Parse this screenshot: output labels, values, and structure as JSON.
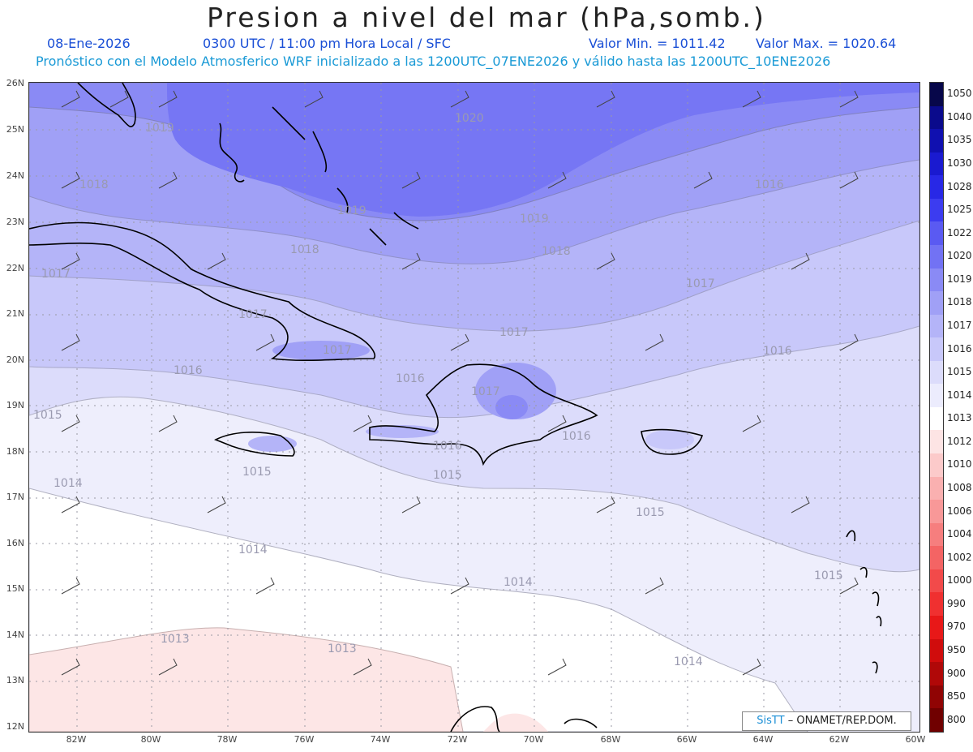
{
  "header": {
    "title": "Presion a nivel del mar (hPa,somb.)",
    "date": "08-Ene-2026",
    "time": "0300 UTC / 11:00 pm Hora Local / SFC",
    "min_label": "Valor Min. = 1011.42",
    "max_label": "Valor Max. = 1020.64",
    "model_line": "Pronóstico con el Modelo Atmosferico WRF inicializado a las 1200UTC_07ENE2026 y válido hasta las  1200UTC_10ENE2026"
  },
  "axes": {
    "lat_labels": [
      "26N",
      "25N",
      "24N",
      "23N",
      "22N",
      "21N",
      "20N",
      "19N",
      "18N",
      "17N",
      "16N",
      "15N",
      "14N",
      "13N",
      "12N"
    ],
    "lon_labels": [
      "82W",
      "80W",
      "78W",
      "76W",
      "74W",
      "72W",
      "70W",
      "68W",
      "66W",
      "64W",
      "62W",
      "60W"
    ]
  },
  "contour_labels": [
    {
      "text": "1019",
      "ref": "a"
    },
    {
      "text": "1020",
      "ref": "b"
    },
    {
      "text": "1018",
      "ref": "c"
    },
    {
      "text": "1019",
      "ref": "d"
    },
    {
      "text": "1016",
      "ref": "e"
    },
    {
      "text": "1019",
      "ref": "f"
    },
    {
      "text": "1018",
      "ref": "g"
    },
    {
      "text": "1018",
      "ref": "h"
    },
    {
      "text": "1017",
      "ref": "i"
    },
    {
      "text": "1017",
      "ref": "j"
    },
    {
      "text": "1017",
      "ref": "k"
    },
    {
      "text": "1017",
      "ref": "l"
    },
    {
      "text": "1017",
      "ref": "m"
    },
    {
      "text": "1016",
      "ref": "n"
    },
    {
      "text": "1016",
      "ref": "o"
    },
    {
      "text": "1016",
      "ref": "p"
    },
    {
      "text": "1017",
      "ref": "q"
    },
    {
      "text": "1015",
      "ref": "r"
    },
    {
      "text": "1016",
      "ref": "s"
    },
    {
      "text": "1016",
      "ref": "t"
    },
    {
      "text": "1015",
      "ref": "u"
    },
    {
      "text": "1015",
      "ref": "v"
    },
    {
      "text": "1014",
      "ref": "w"
    },
    {
      "text": "1015",
      "ref": "x"
    },
    {
      "text": "1014",
      "ref": "y"
    },
    {
      "text": "1014",
      "ref": "z"
    },
    {
      "text": "1015",
      "ref": "aa"
    },
    {
      "text": "1013",
      "ref": "bb"
    },
    {
      "text": "1013",
      "ref": "cc"
    },
    {
      "text": "1014",
      "ref": "dd"
    }
  ],
  "colorbar": {
    "levels": [
      "1050",
      "1040",
      "1035",
      "1030",
      "1028",
      "1025",
      "1022",
      "1020",
      "1019",
      "1018",
      "1017",
      "1016",
      "1015",
      "1014",
      "1013",
      "1012",
      "1010",
      "1008",
      "1006",
      "1004",
      "1002",
      "1000",
      "990",
      "970",
      "950",
      "900",
      "850",
      "800"
    ],
    "colors": [
      "#07074a",
      "#0a0a8c",
      "#1010b0",
      "#1a1ad0",
      "#2828e6",
      "#3c3cf0",
      "#5a5af2",
      "#7272f4",
      "#8a8af5",
      "#a0a0f6",
      "#b4b4f8",
      "#c8c8fa",
      "#dcdcfb",
      "#ececfd",
      "#ffffff",
      "#fde4e4",
      "#fccaca",
      "#fab0b0",
      "#f89898",
      "#f67e7e",
      "#f46464",
      "#f24a4a",
      "#f03030",
      "#e81818",
      "#d00c0c",
      "#b00808",
      "#900404",
      "#700000"
    ]
  },
  "credit": {
    "brand": "SisTT",
    "text": "– ONAMET/REP.DOM."
  }
}
